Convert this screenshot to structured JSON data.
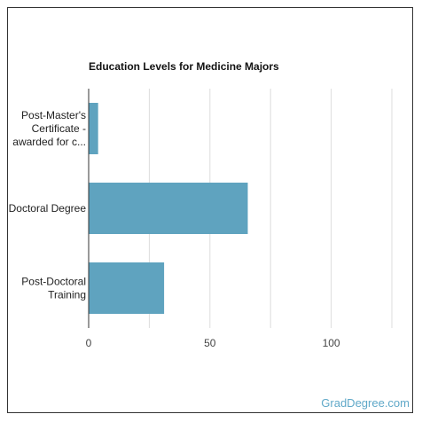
{
  "chart_data": {
    "type": "bar",
    "orientation": "horizontal",
    "title": "Education Levels for Medicine Majors",
    "categories": [
      [
        "Post-Master's",
        "Certificate -",
        "awarded for c..."
      ],
      [
        "Doctoral Degree"
      ],
      [
        "Post-Doctoral",
        "Training"
      ]
    ],
    "values": [
      3.9,
      65.6,
      31.1
    ],
    "xlim": [
      0,
      125
    ],
    "xticks": [
      0,
      50,
      100
    ],
    "grid": true,
    "bar_color": "#5fa3bf"
  },
  "watermark": "GradDegree.com"
}
